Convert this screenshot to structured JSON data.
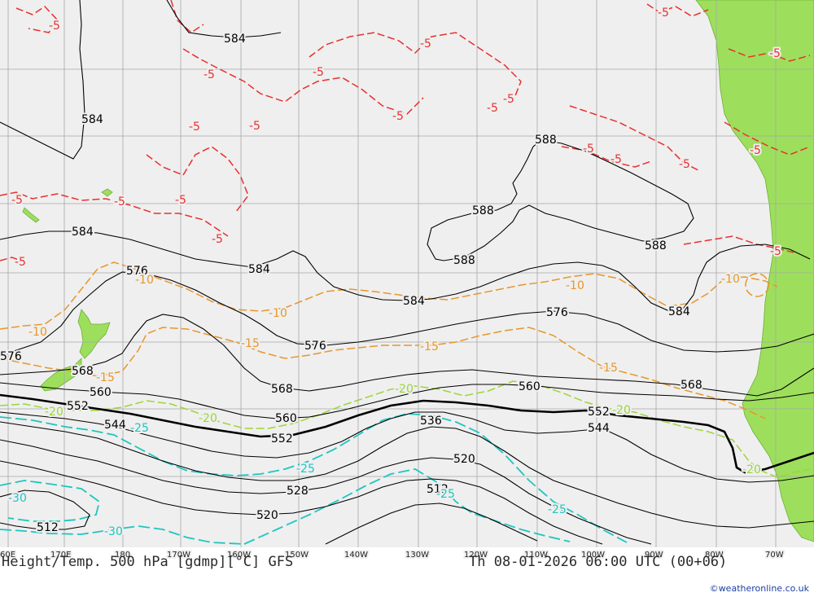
{
  "title": "Height/Temp. 500 hPa [gdmp][°C] GFS",
  "valid_time": "Th 08-01-2026 06:00 UTC (00+06)",
  "credit": "©weatheronline.co.uk",
  "colors": {
    "sea": "#efefef",
    "land": "#9ddf5c",
    "height_contour": "#000000",
    "iso_minus5": "#e83030",
    "iso_minus10_minus15": "#e8962a",
    "iso_minus20": "#9ad638",
    "iso_minus25_minus30": "#1ec6c0"
  },
  "longitude_labels": [
    "60E",
    "170E",
    "180",
    "170W",
    "160W",
    "150W",
    "140W",
    "130W",
    "120W",
    "110W",
    "100W",
    "90W",
    "80W",
    "70W"
  ],
  "height_labels": [
    "584",
    "584",
    "584",
    "584",
    "588",
    "588",
    "588",
    "588",
    "584",
    "584",
    "576",
    "576",
    "576",
    "576",
    "568",
    "568",
    "568",
    "560",
    "560",
    "560",
    "552",
    "552",
    "552",
    "544",
    "544",
    "536",
    "528",
    "520",
    "520",
    "512",
    "512"
  ],
  "temp_labels": {
    "minus5": [
      "-5",
      "-5",
      "-5",
      "-5",
      "-5",
      "-5",
      "-5",
      "-5",
      "-5",
      "-5",
      "-5",
      "-5",
      "-5",
      "-5",
      "-5",
      "-5",
      "-5",
      "-5",
      "-5",
      "-5",
      "-5"
    ],
    "minus10": [
      "-10",
      "-10",
      "-10",
      "-10",
      "-10"
    ],
    "minus15": [
      "-15",
      "-15",
      "-15",
      "-15"
    ],
    "minus20": [
      "-20",
      "-20",
      "-20",
      "-20",
      "-20"
    ],
    "minus25": [
      "-25",
      "-25",
      "-25",
      "-25"
    ],
    "minus30": [
      "-30",
      "-30"
    ]
  }
}
